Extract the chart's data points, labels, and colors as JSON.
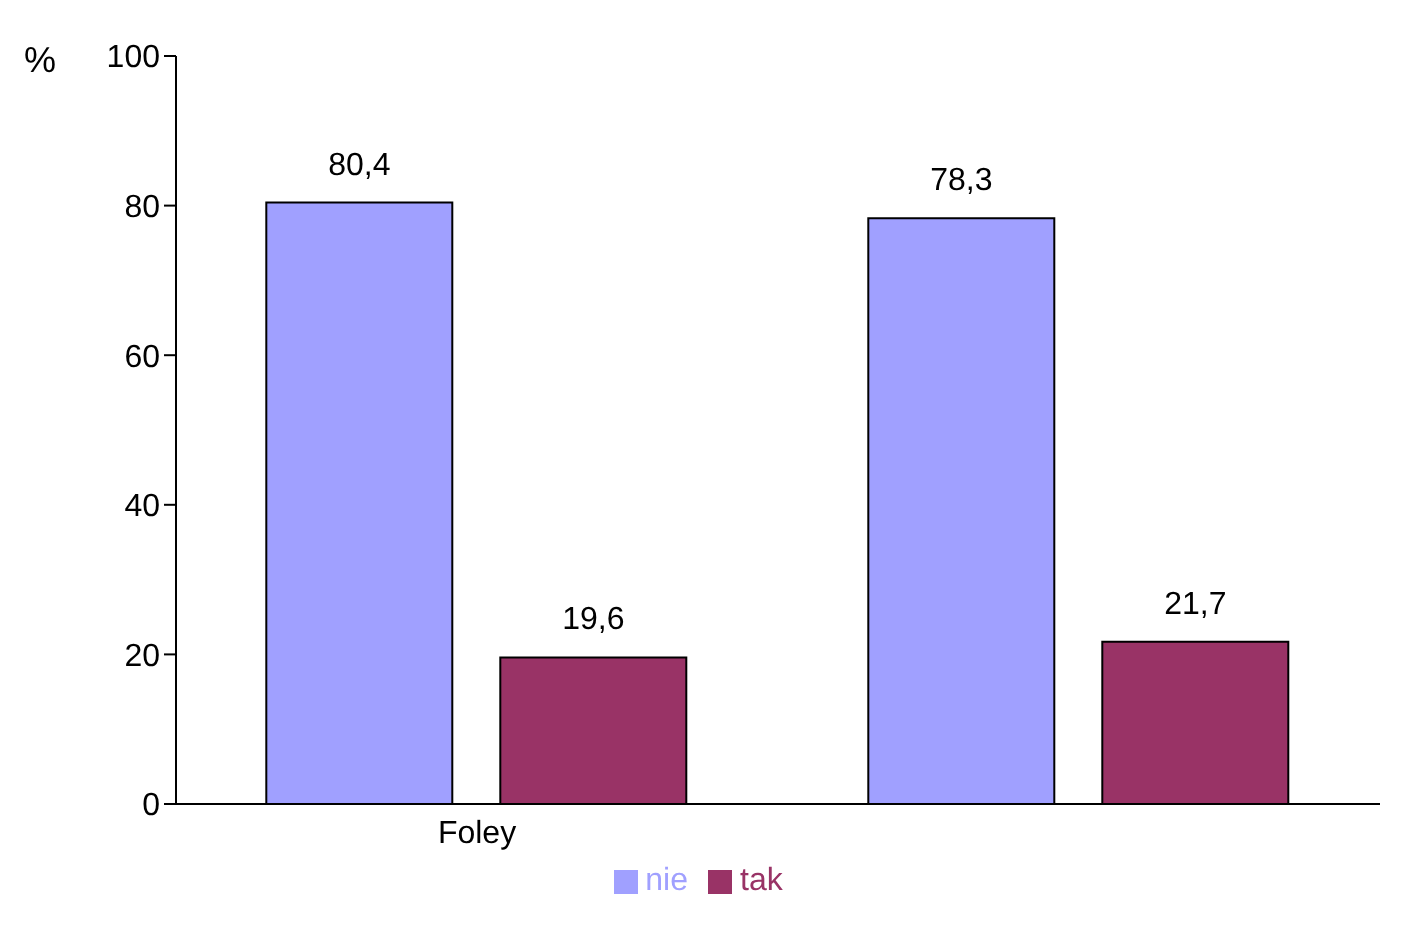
{
  "chart_data": {
    "type": "bar",
    "ylabel": "%",
    "categories": [
      "Foley",
      null
    ],
    "ylim": [
      0,
      100
    ],
    "yticks": [
      0,
      20,
      40,
      60,
      80,
      100
    ],
    "grid": false,
    "legend": "bottom",
    "series": [
      {
        "name": "nie",
        "color": "#a0a0ff",
        "values": [
          80.4,
          78.3
        ],
        "value_labels": [
          "80,4",
          "78,3"
        ]
      },
      {
        "name": "tak",
        "color": "#993366",
        "values": [
          19.6,
          21.7
        ],
        "value_labels": [
          "19,6",
          "21,7"
        ]
      }
    ]
  }
}
